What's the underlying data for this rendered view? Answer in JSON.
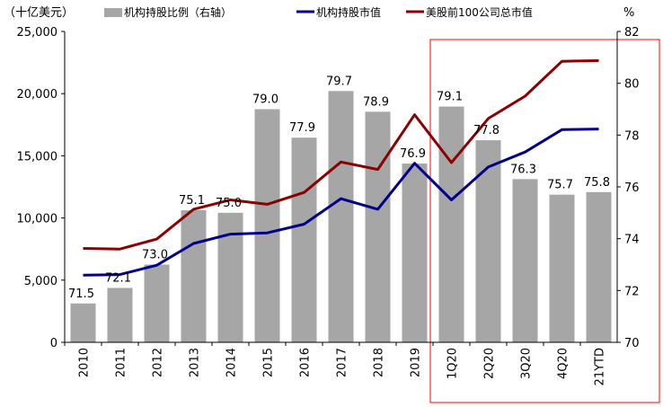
{
  "chart_data": {
    "type": "bar+line",
    "categories": [
      "2010",
      "2011",
      "2012",
      "2013",
      "2014",
      "2015",
      "2016",
      "2017",
      "2018",
      "2019",
      "1Q20",
      "2Q20",
      "3Q20",
      "4Q20",
      "21YTD"
    ],
    "left_axis_label": "（十亿美元）",
    "right_axis_label": "%",
    "left_ylim": [
      0,
      25000
    ],
    "left_ticks": [
      "0",
      "5,000",
      "10,000",
      "15,000",
      "20,000",
      "25,000"
    ],
    "right_ylim": [
      70,
      82
    ],
    "right_ticks": [
      "70",
      "72",
      "74",
      "76",
      "78",
      "80",
      "82"
    ],
    "bar_series": {
      "name": "机构持股比例（右轴）",
      "axis": "right",
      "color": "#a6a6a6",
      "values": [
        71.5,
        72.1,
        73.0,
        75.1,
        75.0,
        79.0,
        77.9,
        79.7,
        78.9,
        76.9,
        79.1,
        77.8,
        76.3,
        75.7,
        75.8
      ],
      "labels": [
        "71.5",
        "72.1",
        "73.0",
        "75.1",
        "75.0",
        "79.0",
        "77.9",
        "79.7",
        "78.9",
        "76.9",
        "79.1",
        "77.8",
        "76.3",
        "75.7",
        "75.8"
      ]
    },
    "line_series": [
      {
        "name": "机构持股市值",
        "axis": "left",
        "color": "#00008b",
        "values": [
          5400,
          5450,
          6200,
          7950,
          8700,
          8800,
          9500,
          11550,
          10700,
          14400,
          11450,
          14100,
          15300,
          17100,
          17150
        ]
      },
      {
        "name": "美股前100公司总市值",
        "axis": "left",
        "color": "#8b0000",
        "values": [
          7550,
          7500,
          8300,
          10700,
          11450,
          11100,
          12050,
          14500,
          13900,
          18300,
          14450,
          18000,
          19800,
          22600,
          22650
        ]
      }
    ],
    "highlight_box": {
      "from_category": "1Q20",
      "to_category": "21YTD",
      "color": "#ff0000"
    },
    "legend_placement": "top"
  }
}
